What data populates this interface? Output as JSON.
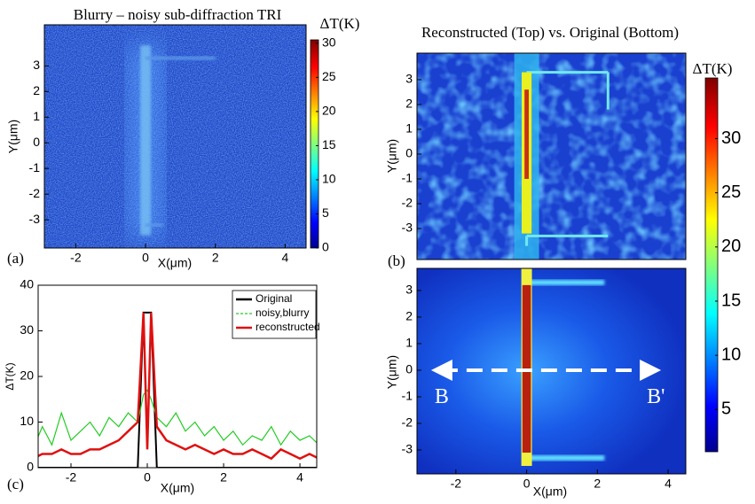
{
  "chart_data": [
    {
      "type": "heatmap",
      "panel_label": "(a)",
      "title": "Blurry – noisy sub-diffraction TRI",
      "xlabel": "X(μm)",
      "ylabel": "Y(μm)",
      "xlim": [
        -2.9,
        4.6
      ],
      "ylim": [
        -4.1,
        4.6
      ],
      "xticks": [
        -2,
        0,
        2,
        4
      ],
      "yticks": [
        -3,
        -2,
        -1,
        0,
        1,
        2,
        3
      ],
      "colorbar": {
        "label": "ΔT(K)",
        "lim": [
          0,
          30.5
        ],
        "ticks": [
          0,
          5,
          10,
          15,
          20,
          25,
          30
        ]
      }
    },
    {
      "type": "heatmap",
      "panel_label": "(b)",
      "title": "Reconstructed (Top) vs. Original (Bottom)",
      "ylabel": "Y(μm)",
      "xlim": [
        -3.1,
        4.5
      ],
      "ylim": [
        -4.25,
        4.07
      ],
      "yticks": [
        -3,
        -2,
        -1,
        0,
        1,
        2,
        3
      ]
    },
    {
      "type": "heatmap",
      "xlabel": "X(μm)",
      "ylabel": "Y(μm)",
      "xlim": [
        -3.1,
        4.5
      ],
      "ylim": [
        -3.9,
        3.83
      ],
      "xticks": [
        -2,
        0,
        2,
        4
      ],
      "yticks": [
        -3,
        -2,
        -1,
        0,
        1,
        2,
        3
      ],
      "annotations": [
        "B",
        "B'"
      ],
      "colorbar": {
        "label": "ΔT(K)",
        "lim": [
          1.1,
          35.6
        ],
        "ticks": [
          5,
          10,
          15,
          20,
          25,
          30
        ]
      }
    },
    {
      "type": "line",
      "panel_label": "(c)",
      "xlabel": "X(μm)",
      "ylabel": "ΔT(K)",
      "xlim": [
        -2.86,
        4.44
      ],
      "ylim": [
        0,
        40
      ],
      "xticks": [
        -2,
        0,
        2,
        4
      ],
      "yticks": [
        0,
        10,
        20,
        30,
        40
      ],
      "x": [
        -3,
        -2.75,
        -2.5,
        -2.25,
        -2,
        -1.75,
        -1.5,
        -1.25,
        -1,
        -0.75,
        -0.5,
        -0.25,
        -0.1,
        0,
        0.1,
        0.25,
        0.5,
        0.75,
        1,
        1.25,
        1.5,
        1.75,
        2,
        2.25,
        2.5,
        2.75,
        3,
        3.25,
        3.5,
        3.75,
        4,
        4.25,
        4.5
      ],
      "series": [
        {
          "name": "Original",
          "color": "#000000",
          "values": [
            0,
            0,
            0,
            0,
            0,
            0,
            0,
            0,
            0,
            0,
            0,
            0,
            34,
            34,
            34,
            0,
            0,
            0,
            0,
            0,
            0,
            0,
            0,
            0,
            0,
            0,
            0,
            0,
            0,
            0,
            0,
            0,
            0
          ]
        },
        {
          "name": "noisy,blurry",
          "color": "#22cc22",
          "values": [
            4,
            9,
            5,
            12,
            6,
            8,
            10,
            7,
            11,
            9,
            12,
            10,
            16,
            17,
            15,
            11,
            9,
            12,
            8,
            10,
            7,
            9,
            6,
            8,
            5,
            7,
            6,
            9,
            5,
            8,
            6,
            7,
            5
          ]
        },
        {
          "name": "reconstructed",
          "color": "#e01010",
          "values": [
            2,
            3,
            3,
            4,
            3,
            3,
            4,
            4,
            5,
            6,
            8,
            10,
            34,
            4,
            34,
            9,
            6,
            5,
            4,
            5,
            4,
            3,
            4,
            3,
            3,
            4,
            3,
            2,
            4,
            3,
            2,
            3,
            2
          ]
        }
      ]
    }
  ]
}
